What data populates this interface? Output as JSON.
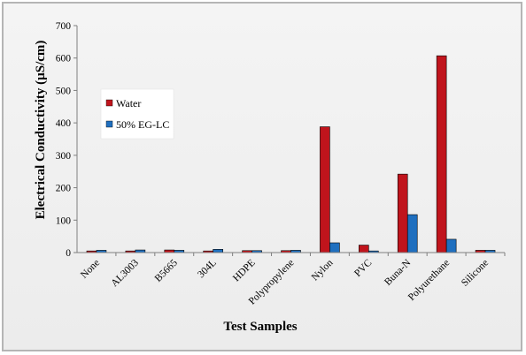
{
  "chart_data": {
    "type": "bar",
    "title": "",
    "xlabel": "Test Samples",
    "ylabel": "Electrical Conductivity (µS/cm)",
    "ylim": [
      0,
      700
    ],
    "yticks": [
      0,
      100,
      200,
      300,
      400,
      500,
      600,
      700
    ],
    "grid": false,
    "legend": "left",
    "categories": [
      "None",
      "AL3003",
      "B5665",
      "304L",
      "HDPE",
      "Polypropylene",
      "Nylon",
      "PVC",
      "Buna-N",
      "Polyurethane",
      "Silicone"
    ],
    "series": [
      {
        "name": "Water",
        "color": "#c0141c",
        "values": [
          5,
          5,
          8,
          5,
          6,
          6,
          388,
          23,
          242,
          607,
          7
        ]
      },
      {
        "name": "50% EG-LC",
        "color": "#1f6fbf",
        "values": [
          7,
          8,
          7,
          10,
          6,
          7,
          30,
          5,
          117,
          41,
          7
        ]
      }
    ]
  }
}
